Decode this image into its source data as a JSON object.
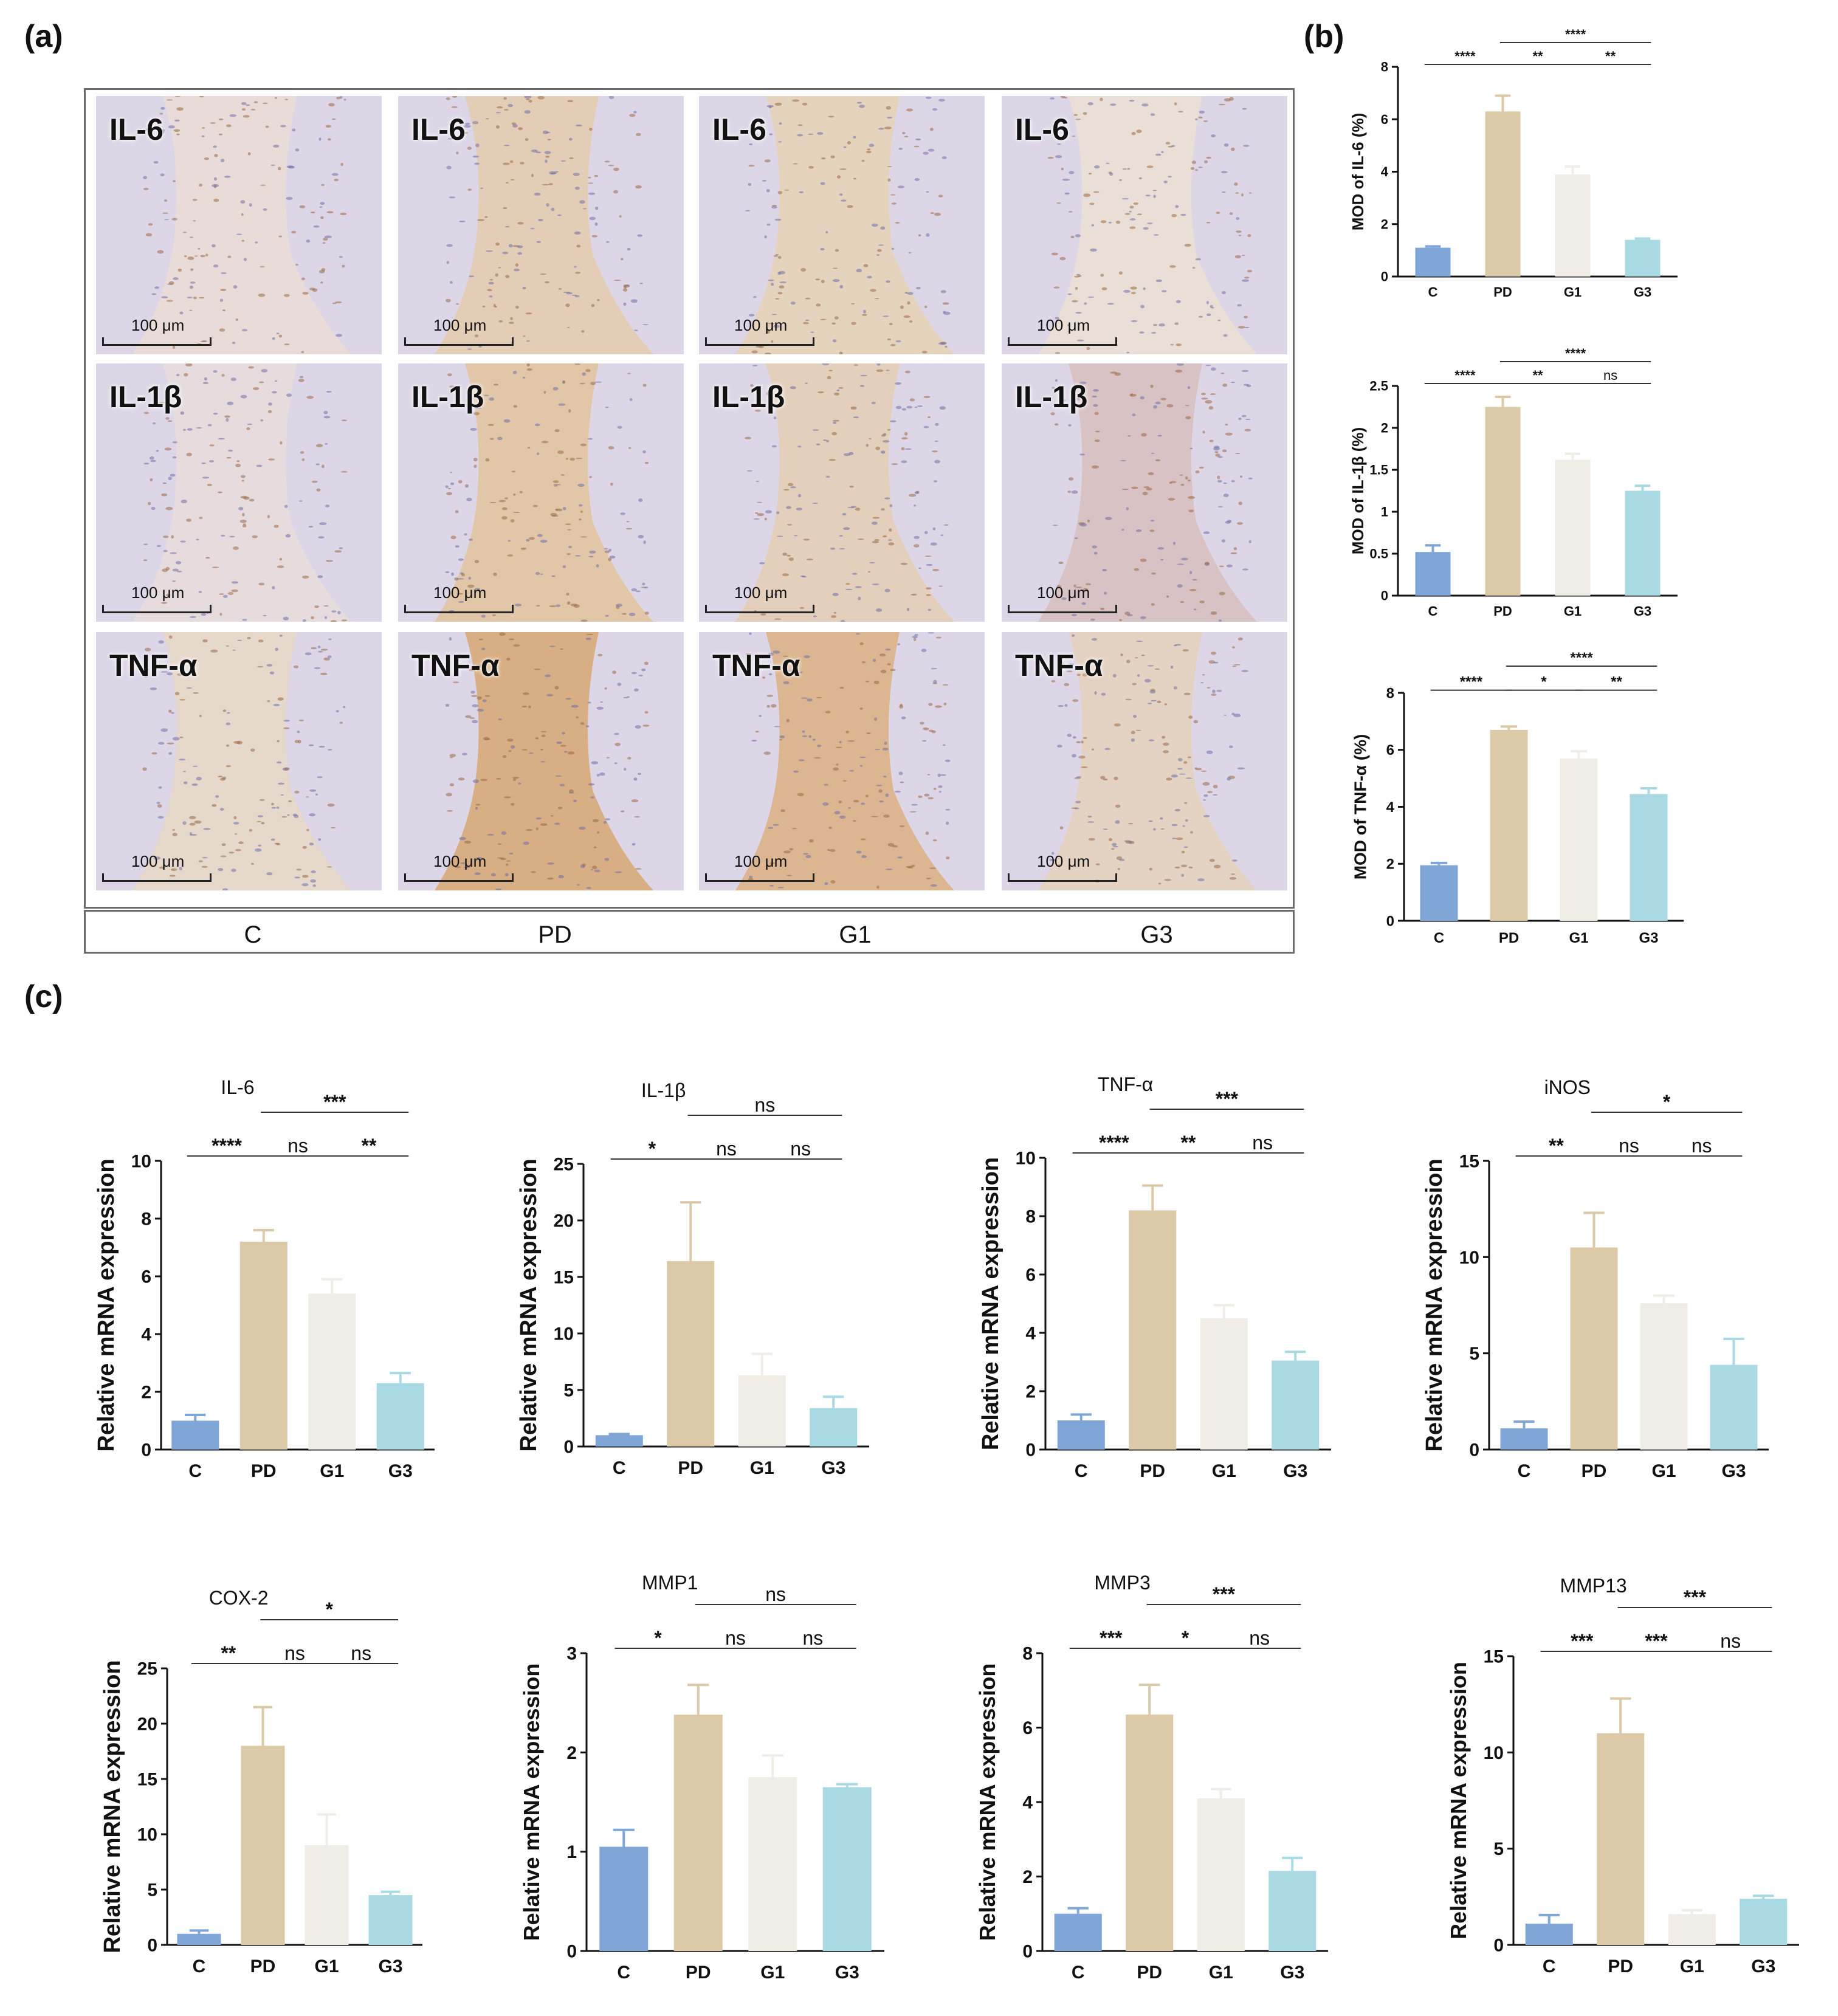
{
  "figure": {
    "panel_a_letter": "(a)",
    "panel_b_letter": "(b)",
    "panel_c_letter": "(c)",
    "groups": [
      "C",
      "PD",
      "G1",
      "G3"
    ],
    "histology_rows": [
      {
        "stain": "IL-6",
        "scale": "100 μm"
      },
      {
        "stain": "IL-1β",
        "scale": "100 μm"
      },
      {
        "stain": "TNF-α",
        "scale": "100 μm"
      }
    ],
    "colors": {
      "C": "#7fa6d6",
      "PD": "#dbc9a8",
      "G1": "#f0ede6",
      "G3": "#a9dae4"
    }
  },
  "chart_data": [
    {
      "id": "b1",
      "type": "bar",
      "panel": "(b)",
      "title": "",
      "ylabel": "MOD of IL-6 (%)",
      "categories": [
        "C",
        "PD",
        "G1",
        "G3"
      ],
      "values": [
        1.1,
        6.3,
        3.9,
        1.4
      ],
      "errors": [
        0.05,
        0.6,
        0.3,
        0.05
      ],
      "ylim": [
        0,
        8
      ],
      "yticks": [
        0,
        2,
        4,
        6,
        8
      ],
      "sig": [
        {
          "a": 0,
          "b": 1,
          "label": "****",
          "level": 0
        },
        {
          "a": 1,
          "b": 2,
          "label": "**",
          "level": 0
        },
        {
          "a": 2,
          "b": 3,
          "label": "**",
          "level": 0
        },
        {
          "a": 1,
          "b": 3,
          "label": "****",
          "level": 1
        }
      ]
    },
    {
      "id": "b2",
      "type": "bar",
      "panel": "(b)",
      "title": "",
      "ylabel": "MOD of IL-1β (%)",
      "categories": [
        "C",
        "PD",
        "G1",
        "G3"
      ],
      "values": [
        0.52,
        2.25,
        1.62,
        1.25
      ],
      "errors": [
        0.08,
        0.12,
        0.07,
        0.06
      ],
      "ylim": [
        0,
        2.5
      ],
      "yticks": [
        0.0,
        0.5,
        1.0,
        1.5,
        2.0,
        2.5
      ],
      "sig": [
        {
          "a": 0,
          "b": 1,
          "label": "****",
          "level": 0
        },
        {
          "a": 1,
          "b": 2,
          "label": "**",
          "level": 0
        },
        {
          "a": 2,
          "b": 3,
          "label": "ns",
          "level": 0
        },
        {
          "a": 1,
          "b": 3,
          "label": "****",
          "level": 1
        }
      ]
    },
    {
      "id": "b3",
      "type": "bar",
      "panel": "(b)",
      "title": "",
      "ylabel": "MOD of TNF-α (%)",
      "categories": [
        "C",
        "PD",
        "G1",
        "G3"
      ],
      "values": [
        1.95,
        6.7,
        5.7,
        4.45
      ],
      "errors": [
        0.08,
        0.12,
        0.25,
        0.2
      ],
      "ylim": [
        0,
        8
      ],
      "yticks": [
        0,
        2,
        4,
        6,
        8
      ],
      "sig": [
        {
          "a": 0,
          "b": 1,
          "label": "****",
          "level": 0
        },
        {
          "a": 1,
          "b": 2,
          "label": "*",
          "level": 0
        },
        {
          "a": 2,
          "b": 3,
          "label": "**",
          "level": 0
        },
        {
          "a": 1,
          "b": 3,
          "label": "****",
          "level": 1
        }
      ]
    },
    {
      "id": "c1",
      "type": "bar",
      "panel": "(c)",
      "title": "IL-6",
      "ylabel": "Relative mRNA expression",
      "categories": [
        "C",
        "PD",
        "G1",
        "G3"
      ],
      "values": [
        1.0,
        7.2,
        5.4,
        2.3
      ],
      "errors": [
        0.2,
        0.4,
        0.5,
        0.35
      ],
      "ylim": [
        0,
        10
      ],
      "yticks": [
        0,
        2,
        4,
        6,
        8,
        10
      ],
      "sig": [
        {
          "a": 0,
          "b": 1,
          "label": "****",
          "level": 0
        },
        {
          "a": 1,
          "b": 2,
          "label": "ns",
          "level": 0
        },
        {
          "a": 2,
          "b": 3,
          "label": "**",
          "level": 0
        },
        {
          "a": 1,
          "b": 3,
          "label": "***",
          "level": 1
        }
      ]
    },
    {
      "id": "c2",
      "type": "bar",
      "panel": "(c)",
      "title": "IL-1β",
      "ylabel": "Relative mRNA expression",
      "categories": [
        "C",
        "PD",
        "G1",
        "G3"
      ],
      "values": [
        1.0,
        16.4,
        6.3,
        3.4
      ],
      "errors": [
        0.1,
        5.2,
        1.9,
        1.0
      ],
      "ylim": [
        0,
        25
      ],
      "yticks": [
        0,
        5,
        10,
        15,
        20,
        25
      ],
      "sig": [
        {
          "a": 0,
          "b": 1,
          "label": "*",
          "level": 0
        },
        {
          "a": 1,
          "b": 2,
          "label": "ns",
          "level": 0
        },
        {
          "a": 2,
          "b": 3,
          "label": "ns",
          "level": 0
        },
        {
          "a": 1,
          "b": 3,
          "label": "ns",
          "level": 1
        }
      ]
    },
    {
      "id": "c3",
      "type": "bar",
      "panel": "(c)",
      "title": "TNF-α",
      "ylabel": "Relative mRNA expression",
      "categories": [
        "C",
        "PD",
        "G1",
        "G3"
      ],
      "values": [
        1.0,
        8.2,
        4.5,
        3.05
      ],
      "errors": [
        0.2,
        0.85,
        0.45,
        0.3
      ],
      "ylim": [
        0,
        10
      ],
      "yticks": [
        0,
        2,
        4,
        6,
        8,
        10
      ],
      "sig": [
        {
          "a": 0,
          "b": 1,
          "label": "****",
          "level": 0
        },
        {
          "a": 1,
          "b": 2,
          "label": "**",
          "level": 0
        },
        {
          "a": 2,
          "b": 3,
          "label": "ns",
          "level": 0
        },
        {
          "a": 1,
          "b": 3,
          "label": "***",
          "level": 1
        }
      ]
    },
    {
      "id": "c4",
      "type": "bar",
      "panel": "(c)",
      "title": "iNOS",
      "ylabel": "Relative mRNA expression",
      "categories": [
        "C",
        "PD",
        "G1",
        "G3"
      ],
      "values": [
        1.1,
        10.5,
        7.6,
        4.4
      ],
      "errors": [
        0.35,
        1.8,
        0.4,
        1.35
      ],
      "ylim": [
        0,
        15
      ],
      "yticks": [
        0,
        5,
        10,
        15
      ],
      "sig": [
        {
          "a": 0,
          "b": 1,
          "label": "**",
          "level": 0
        },
        {
          "a": 1,
          "b": 2,
          "label": "ns",
          "level": 0
        },
        {
          "a": 2,
          "b": 3,
          "label": "ns",
          "level": 0
        },
        {
          "a": 1,
          "b": 3,
          "label": "*",
          "level": 1
        }
      ]
    },
    {
      "id": "c5",
      "type": "bar",
      "panel": "(c)",
      "title": "COX-2",
      "ylabel": "Relative mRNA expression",
      "categories": [
        "C",
        "PD",
        "G1",
        "G3"
      ],
      "values": [
        1.0,
        18.0,
        9.0,
        4.5
      ],
      "errors": [
        0.3,
        3.5,
        2.8,
        0.3
      ],
      "ylim": [
        0,
        25
      ],
      "yticks": [
        0,
        5,
        10,
        15,
        20,
        25
      ],
      "sig": [
        {
          "a": 0,
          "b": 1,
          "label": "**",
          "level": 0
        },
        {
          "a": 1,
          "b": 2,
          "label": "ns",
          "level": 0
        },
        {
          "a": 2,
          "b": 3,
          "label": "ns",
          "level": 0
        },
        {
          "a": 1,
          "b": 3,
          "label": "*",
          "level": 1
        }
      ]
    },
    {
      "id": "c6",
      "type": "bar",
      "panel": "(c)",
      "title": "MMP1",
      "ylabel": "Relative mRNA expression",
      "categories": [
        "C",
        "PD",
        "G1",
        "G3"
      ],
      "values": [
        1.05,
        2.38,
        1.75,
        1.65
      ],
      "errors": [
        0.17,
        0.3,
        0.22,
        0.03
      ],
      "ylim": [
        0,
        3
      ],
      "yticks": [
        0,
        1,
        2,
        3
      ],
      "sig": [
        {
          "a": 0,
          "b": 1,
          "label": "*",
          "level": 0
        },
        {
          "a": 1,
          "b": 2,
          "label": "ns",
          "level": 0
        },
        {
          "a": 2,
          "b": 3,
          "label": "ns",
          "level": 0
        },
        {
          "a": 1,
          "b": 3,
          "label": "ns",
          "level": 1
        }
      ]
    },
    {
      "id": "c7",
      "type": "bar",
      "panel": "(c)",
      "title": "MMP3",
      "ylabel": "Relative mRNA expression",
      "categories": [
        "C",
        "PD",
        "G1",
        "G3"
      ],
      "values": [
        1.0,
        6.35,
        4.1,
        2.15
      ],
      "errors": [
        0.15,
        0.8,
        0.25,
        0.35
      ],
      "ylim": [
        0,
        8
      ],
      "yticks": [
        0,
        2,
        4,
        6,
        8
      ],
      "sig": [
        {
          "a": 0,
          "b": 1,
          "label": "***",
          "level": 0
        },
        {
          "a": 1,
          "b": 2,
          "label": "*",
          "level": 0
        },
        {
          "a": 2,
          "b": 3,
          "label": "ns",
          "level": 0
        },
        {
          "a": 1,
          "b": 3,
          "label": "***",
          "level": 1
        }
      ]
    },
    {
      "id": "c8",
      "type": "bar",
      "panel": "(c)",
      "title": "MMP13",
      "ylabel": "Relative mRNA expression",
      "categories": [
        "C",
        "PD",
        "G1",
        "G3"
      ],
      "values": [
        1.1,
        11.0,
        1.6,
        2.4
      ],
      "errors": [
        0.45,
        1.8,
        0.2,
        0.15
      ],
      "ylim": [
        0,
        15
      ],
      "yticks": [
        0,
        5,
        10,
        15
      ],
      "sig": [
        {
          "a": 0,
          "b": 1,
          "label": "***",
          "level": 0
        },
        {
          "a": 1,
          "b": 2,
          "label": "***",
          "level": 0
        },
        {
          "a": 2,
          "b": 3,
          "label": "ns",
          "level": 0
        },
        {
          "a": 1,
          "b": 3,
          "label": "***",
          "level": 1
        }
      ]
    }
  ]
}
